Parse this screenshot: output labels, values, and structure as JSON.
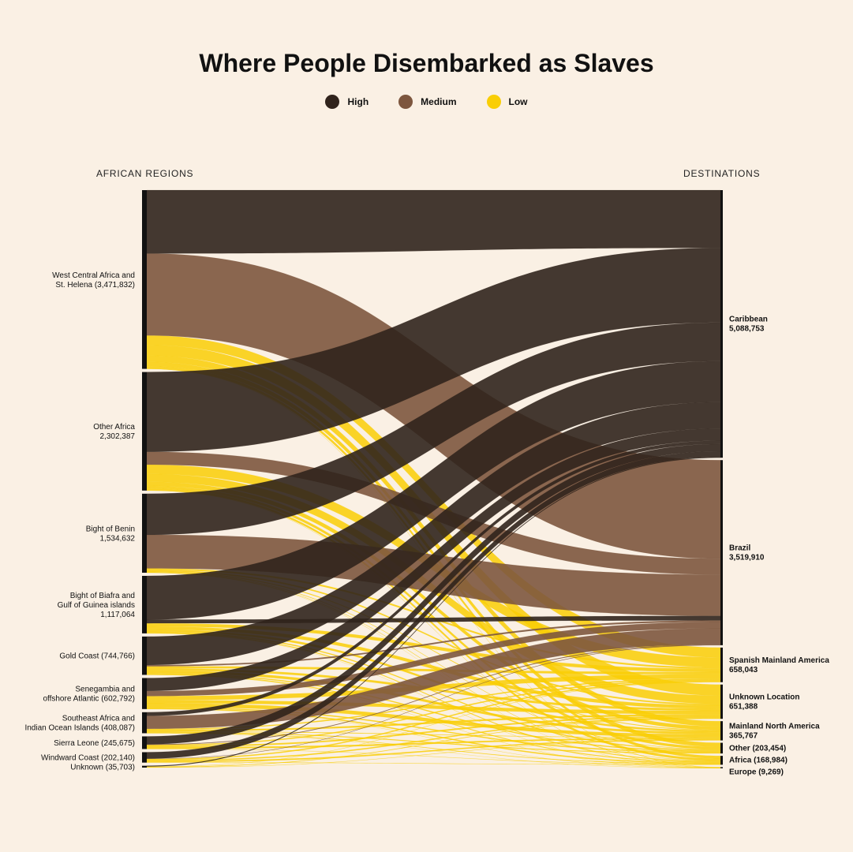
{
  "title": "Where People Disembarked as Slaves",
  "legend": [
    {
      "label": "High",
      "color": "#30231c"
    },
    {
      "label": "Medium",
      "color": "#7d563e"
    },
    {
      "label": "Low",
      "color": "#f9ce06"
    }
  ],
  "left_header": "AFRICAN REGIONS",
  "right_header": "DESTINATIONS",
  "colors": {
    "High": "#30231c",
    "Medium": "#7d563e",
    "Low": "#f9ce06",
    "background": "#faf0e4",
    "node": "#111111"
  },
  "chart_data": {
    "type": "sankey",
    "sources": [
      {
        "id": "wca",
        "lines": [
          "West Central Africa and",
          "St. Helena (3,471,832)"
        ],
        "value": 3471832
      },
      {
        "id": "oth",
        "lines": [
          "Other Africa",
          "2,302,387"
        ],
        "value": 2302387
      },
      {
        "id": "ben",
        "lines": [
          "Bight of Benin",
          "1,534,632"
        ],
        "value": 1534632
      },
      {
        "id": "bia",
        "lines": [
          "Bight of Biafra and",
          "Gulf of Guinea islands",
          "1,117,064"
        ],
        "value": 1117064
      },
      {
        "id": "gc",
        "lines": [
          "Gold Coast (744,766)"
        ],
        "value": 744766
      },
      {
        "id": "sen",
        "lines": [
          "Senegambia and",
          "offshore Atlantic (602,792)"
        ],
        "value": 602792
      },
      {
        "id": "sea",
        "lines": [
          "Southeast Africa and",
          "Indian Ocean Islands (408,087)"
        ],
        "value": 408087
      },
      {
        "id": "sl",
        "lines": [
          "Sierra Leone (245,675)"
        ],
        "value": 245675
      },
      {
        "id": "wc",
        "lines": [
          "Windward Coast (202,140)"
        ],
        "value": 202140
      },
      {
        "id": "unk",
        "lines": [
          "Unknown (35,703)"
        ],
        "value": 35703
      }
    ],
    "destinations": [
      {
        "id": "car",
        "lines": [
          "Caribbean",
          "5,088,753"
        ],
        "value": 5088753
      },
      {
        "id": "bra",
        "lines": [
          "Brazil",
          "3,519,910"
        ],
        "value": 3519910
      },
      {
        "id": "spa",
        "lines": [
          "Spanish Mainland America",
          "658,043"
        ],
        "value": 658043
      },
      {
        "id": "uloc",
        "lines": [
          "Unknown Location",
          "651,388"
        ],
        "value": 651388
      },
      {
        "id": "mna",
        "lines": [
          "Mainland North America",
          "365,767"
        ],
        "value": 365767
      },
      {
        "id": "other",
        "lines": [
          "Other (203,454)"
        ],
        "value": 203454
      },
      {
        "id": "afr",
        "lines": [
          "Africa (168,984)"
        ],
        "value": 168984
      },
      {
        "id": "eur",
        "lines": [
          "Europe (9,269)"
        ],
        "value": 9269
      }
    ],
    "flows": [
      {
        "from": "wca",
        "to": "car",
        "level": "High",
        "value": 1200000
      },
      {
        "from": "wca",
        "to": "bra",
        "level": "Medium",
        "value": 1550000
      },
      {
        "from": "wca",
        "to": "spa",
        "level": "Low",
        "value": 180000
      },
      {
        "from": "wca",
        "to": "uloc",
        "level": "Low",
        "value": 200000
      },
      {
        "from": "wca",
        "to": "mna",
        "level": "Low",
        "value": 120000
      },
      {
        "from": "wca",
        "to": "other",
        "level": "Low",
        "value": 80000
      },
      {
        "from": "wca",
        "to": "afr",
        "level": "Low",
        "value": 50000
      },
      {
        "from": "wca",
        "to": "eur",
        "level": "Low",
        "value": 2000
      },
      {
        "from": "oth",
        "to": "car",
        "level": "High",
        "value": 1550000
      },
      {
        "from": "oth",
        "to": "bra",
        "level": "Medium",
        "value": 250000
      },
      {
        "from": "oth",
        "to": "spa",
        "level": "Low",
        "value": 180000
      },
      {
        "from": "oth",
        "to": "uloc",
        "level": "Low",
        "value": 150000
      },
      {
        "from": "oth",
        "to": "mna",
        "level": "Low",
        "value": 80000
      },
      {
        "from": "oth",
        "to": "other",
        "level": "Low",
        "value": 50000
      },
      {
        "from": "oth",
        "to": "afr",
        "level": "Low",
        "value": 40000
      },
      {
        "from": "oth",
        "to": "eur",
        "level": "Low",
        "value": 2000
      },
      {
        "from": "ben",
        "to": "car",
        "level": "High",
        "value": 800000
      },
      {
        "from": "ben",
        "to": "bra",
        "level": "Medium",
        "value": 650000
      },
      {
        "from": "ben",
        "to": "spa",
        "level": "Low",
        "value": 30000
      },
      {
        "from": "ben",
        "to": "uloc",
        "level": "Low",
        "value": 25000
      },
      {
        "from": "ben",
        "to": "mna",
        "level": "Low",
        "value": 15000
      },
      {
        "from": "ben",
        "to": "other",
        "level": "Low",
        "value": 8000
      },
      {
        "from": "ben",
        "to": "afr",
        "level": "Low",
        "value": 6000
      },
      {
        "from": "ben",
        "to": "eur",
        "level": "Low",
        "value": 500
      },
      {
        "from": "bia",
        "to": "car",
        "level": "High",
        "value": 850000
      },
      {
        "from": "bia",
        "to": "bra",
        "level": "High",
        "value": 70000
      },
      {
        "from": "bia",
        "to": "spa",
        "level": "Low",
        "value": 60000
      },
      {
        "from": "bia",
        "to": "uloc",
        "level": "Low",
        "value": 60000
      },
      {
        "from": "bia",
        "to": "mna",
        "level": "Low",
        "value": 40000
      },
      {
        "from": "bia",
        "to": "other",
        "level": "Low",
        "value": 20000
      },
      {
        "from": "bia",
        "to": "afr",
        "level": "Low",
        "value": 15000
      },
      {
        "from": "bia",
        "to": "eur",
        "level": "Low",
        "value": 1000
      },
      {
        "from": "gc",
        "to": "car",
        "level": "High",
        "value": 550000
      },
      {
        "from": "gc",
        "to": "bra",
        "level": "Medium",
        "value": 25000
      },
      {
        "from": "gc",
        "to": "spa",
        "level": "Low",
        "value": 40000
      },
      {
        "from": "gc",
        "to": "uloc",
        "level": "Low",
        "value": 40000
      },
      {
        "from": "gc",
        "to": "mna",
        "level": "Low",
        "value": 50000
      },
      {
        "from": "gc",
        "to": "other",
        "level": "Low",
        "value": 20000
      },
      {
        "from": "gc",
        "to": "afr",
        "level": "Low",
        "value": 15000
      },
      {
        "from": "gc",
        "to": "eur",
        "level": "Low",
        "value": 1000
      },
      {
        "from": "sen",
        "to": "car",
        "level": "High",
        "value": 250000
      },
      {
        "from": "sen",
        "to": "bra",
        "level": "Medium",
        "value": 100000
      },
      {
        "from": "sen",
        "to": "spa",
        "level": "Low",
        "value": 80000
      },
      {
        "from": "sen",
        "to": "uloc",
        "level": "Low",
        "value": 60000
      },
      {
        "from": "sen",
        "to": "mna",
        "level": "Low",
        "value": 70000
      },
      {
        "from": "sen",
        "to": "other",
        "level": "Low",
        "value": 20000
      },
      {
        "from": "sen",
        "to": "afr",
        "level": "Low",
        "value": 20000
      },
      {
        "from": "sen",
        "to": "eur",
        "level": "Low",
        "value": 1000
      },
      {
        "from": "sea",
        "to": "car",
        "level": "High",
        "value": 70000
      },
      {
        "from": "sea",
        "to": "bra",
        "level": "Medium",
        "value": 250000
      },
      {
        "from": "sea",
        "to": "spa",
        "level": "Low",
        "value": 20000
      },
      {
        "from": "sea",
        "to": "uloc",
        "level": "Low",
        "value": 30000
      },
      {
        "from": "sea",
        "to": "mna",
        "level": "Low",
        "value": 10000
      },
      {
        "from": "sea",
        "to": "other",
        "level": "Low",
        "value": 15000
      },
      {
        "from": "sea",
        "to": "afr",
        "level": "Low",
        "value": 10000
      },
      {
        "from": "sea",
        "to": "eur",
        "level": "Low",
        "value": 500
      },
      {
        "from": "sl",
        "to": "car",
        "level": "High",
        "value": 150000
      },
      {
        "from": "sl",
        "to": "bra",
        "level": "Medium",
        "value": 10000
      },
      {
        "from": "sl",
        "to": "spa",
        "level": "Low",
        "value": 20000
      },
      {
        "from": "sl",
        "to": "uloc",
        "level": "Low",
        "value": 25000
      },
      {
        "from": "sl",
        "to": "mna",
        "level": "Low",
        "value": 30000
      },
      {
        "from": "sl",
        "to": "afr",
        "level": "Low",
        "value": 5000
      },
      {
        "from": "wc",
        "to": "car",
        "level": "High",
        "value": 120000
      },
      {
        "from": "wc",
        "to": "bra",
        "level": "Medium",
        "value": 5000
      },
      {
        "from": "wc",
        "to": "spa",
        "level": "Low",
        "value": 20000
      },
      {
        "from": "wc",
        "to": "uloc",
        "level": "Low",
        "value": 20000
      },
      {
        "from": "wc",
        "to": "mna",
        "level": "Low",
        "value": 25000
      },
      {
        "from": "wc",
        "to": "afr",
        "level": "Low",
        "value": 5000
      },
      {
        "from": "unk",
        "to": "car",
        "level": "High",
        "value": 15000
      },
      {
        "from": "unk",
        "to": "spa",
        "level": "Low",
        "value": 5000
      },
      {
        "from": "unk",
        "to": "uloc",
        "level": "Low",
        "value": 10000
      },
      {
        "from": "unk",
        "to": "mna",
        "level": "Low",
        "value": 5000
      }
    ]
  }
}
